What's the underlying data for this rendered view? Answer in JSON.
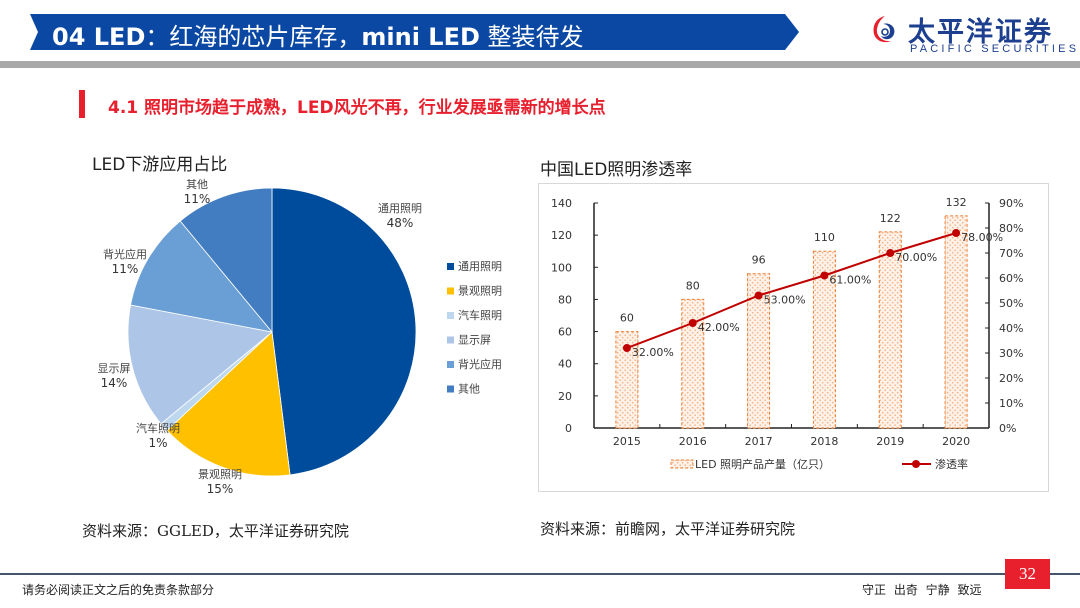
{
  "header": {
    "title_prefix": "04 LED",
    "title_cn": "：红海的芯片库存，",
    "title_mid": "mini LED",
    "title_suffix": " 整装待发",
    "logo_cn": "太平洋证券",
    "logo_en": "PACIFIC SECURITIES"
  },
  "section": {
    "title": "4.1 照明市场趋于成熟，LED风光不再，行业发展亟需新的增长点"
  },
  "colors": {
    "banner": "#0a48a3",
    "accent_red": "#e8202e",
    "logo_blue": "#1d3f8f"
  },
  "chart_data": [
    {
      "type": "pie",
      "title": "LED下游应用占比",
      "categories": [
        "通用照明",
        "景观照明",
        "汽车照明",
        "显示屏",
        "背光应用",
        "其他"
      ],
      "values": [
        48,
        15,
        1,
        14,
        11,
        11
      ],
      "labels": [
        "48%",
        "15%",
        "1%",
        "14%",
        "11%",
        "11%"
      ],
      "colors": [
        "#004c9c",
        "#ffc000",
        "#bdd7ee",
        "#adc6e7",
        "#6a9fd6",
        "#437dc1"
      ],
      "legend": "right",
      "source": "资料来源：GGLED，太平洋证券研究院"
    },
    {
      "type": "bar",
      "title": "中国LED照明渗透率",
      "categories": [
        "2015",
        "2016",
        "2017",
        "2018",
        "2019",
        "2020"
      ],
      "series": [
        {
          "name": "LED 照明产品产量（亿只）",
          "type": "bar",
          "axis": "left",
          "values": [
            60,
            80,
            96,
            110,
            122,
            132
          ],
          "labels": [
            "60",
            "80",
            "96",
            "110",
            "122",
            "132"
          ],
          "color": "#ed7d31"
        },
        {
          "name": "渗透率",
          "type": "line",
          "axis": "right",
          "values": [
            0.32,
            0.42,
            0.53,
            0.61,
            0.7,
            0.78
          ],
          "labels": [
            "32.00%",
            "42.00%",
            "53.00%",
            "61.00%",
            "70.00%",
            "78.00%"
          ],
          "color": "#c00000"
        }
      ],
      "ylim": [
        0,
        140
      ],
      "yticks": [
        "0",
        "20",
        "40",
        "60",
        "80",
        "100",
        "120",
        "140"
      ],
      "y2lim": [
        0,
        0.9
      ],
      "y2ticks": [
        "0%",
        "10%",
        "20%",
        "30%",
        "40%",
        "50%",
        "60%",
        "70%",
        "80%",
        "90%"
      ],
      "grid": false,
      "legend": "bottom",
      "source": "资料来源：前瞻网，太平洋证券研究院"
    }
  ],
  "footer": {
    "disclaimer": "请务必阅读正文之后的免责条款部分",
    "motto": "守正 出奇 宁静 致远",
    "page_number": "32"
  }
}
